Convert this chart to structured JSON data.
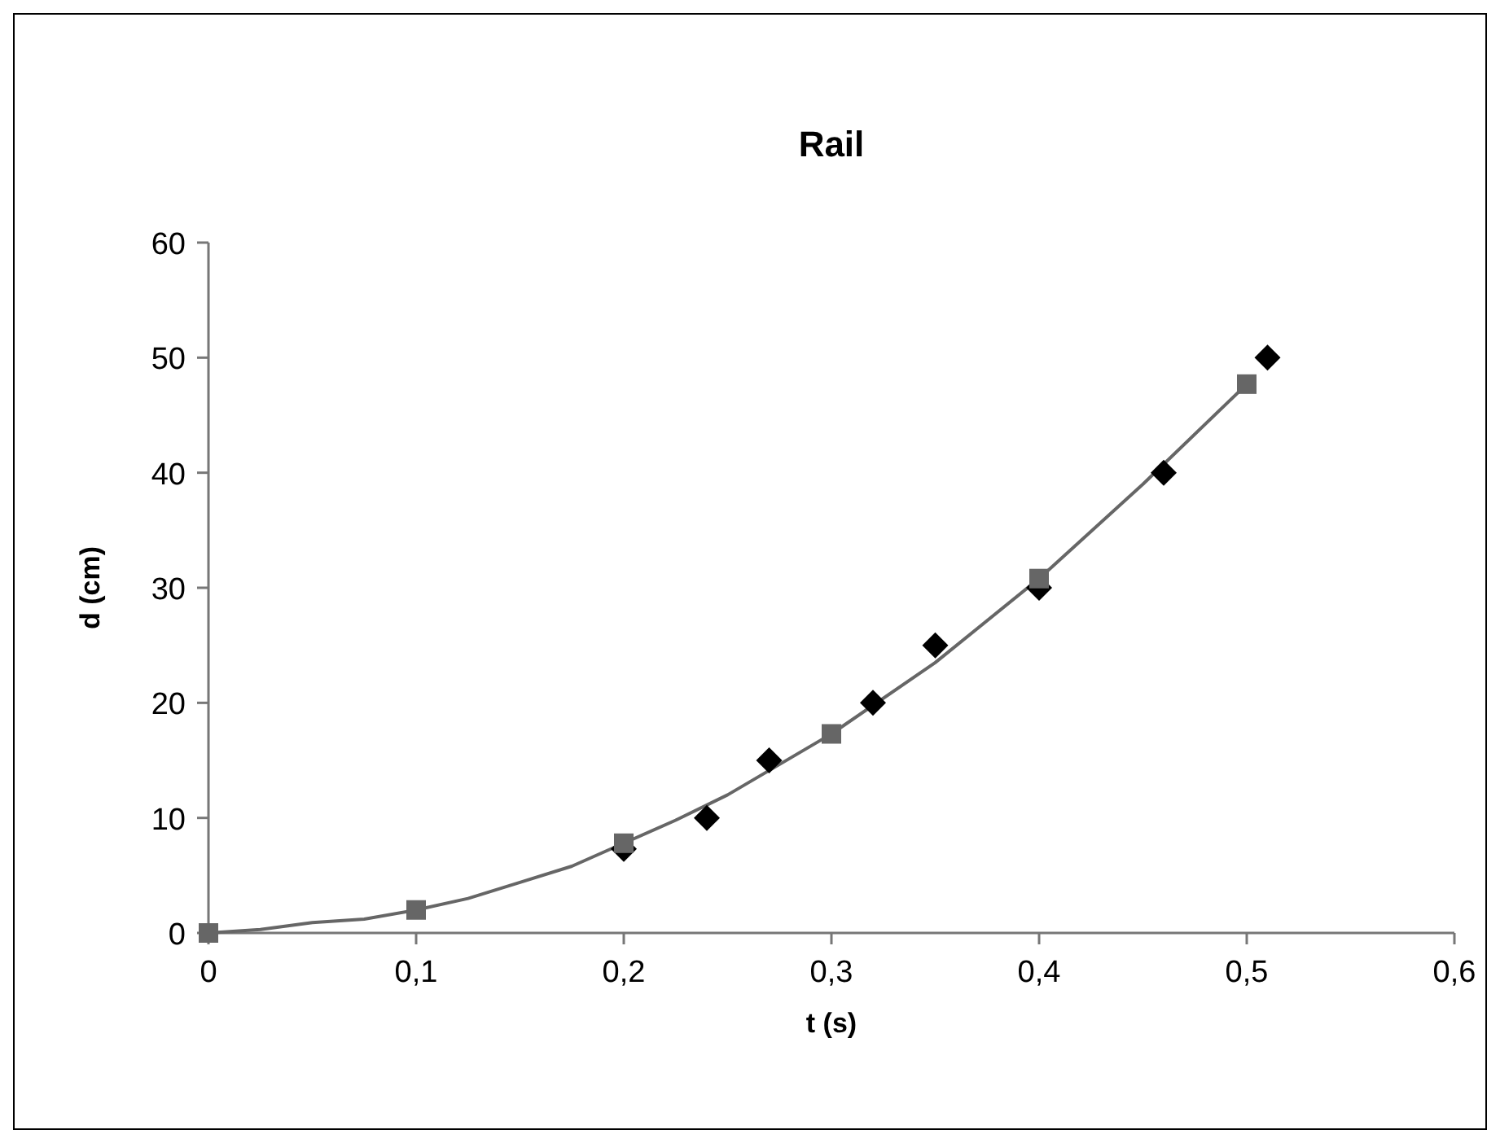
{
  "chart_data": {
    "type": "scatter",
    "title": "Rail",
    "xlabel": "t (s)",
    "ylabel": "d (cm)",
    "xlim": [
      0,
      0.6
    ],
    "ylim": [
      0,
      60
    ],
    "xticks": [
      0,
      {
        "value": 0.1,
        "label": "0,1"
      },
      {
        "value": 0.2,
        "label": "0,2"
      },
      {
        "value": 0.3,
        "label": "0,3"
      },
      {
        "value": 0.4,
        "label": "0,4"
      },
      {
        "value": 0.5,
        "label": "0,5"
      },
      {
        "value": 0.6,
        "label": "0,6"
      }
    ],
    "yticks": [
      0,
      10,
      20,
      30,
      40,
      50,
      60
    ],
    "grid": false,
    "series": [
      {
        "type": "line",
        "color": "#666666",
        "marker": "none",
        "line_style": "solid",
        "x": [
          0,
          0.025,
          0.05,
          0.075,
          0.1,
          0.125,
          0.15,
          0.175,
          0.2,
          0.225,
          0.25,
          0.3,
          0.35,
          0.4,
          0.45,
          0.5
        ],
        "values": [
          0,
          0.3,
          0.9,
          1.2,
          2,
          3,
          4.4,
          5.8,
          7.8,
          9.8,
          12,
          17.3,
          23.5,
          30.8,
          39,
          47.7
        ]
      },
      {
        "color": "#000000",
        "marker": "diamond",
        "x": [
          0.2,
          0.24,
          0.27,
          0.32,
          0.35,
          0.4,
          0.46,
          0.51
        ],
        "values": [
          7.3,
          10,
          15,
          20,
          25,
          30,
          40,
          50
        ]
      },
      {
        "color": "#666666",
        "marker": "square",
        "x": [
          0,
          0.1,
          0.2,
          0.3,
          0.4,
          0.5
        ],
        "values": [
          0,
          2,
          7.8,
          17.3,
          30.8,
          47.7
        ]
      }
    ]
  }
}
